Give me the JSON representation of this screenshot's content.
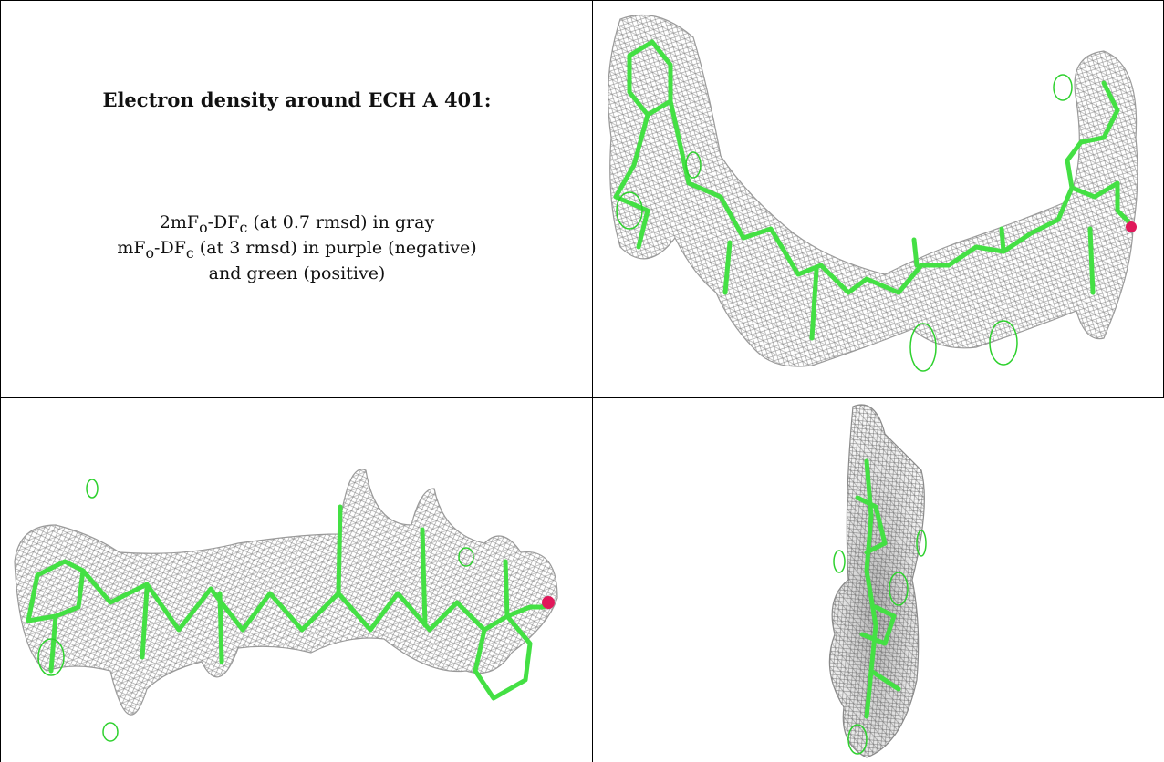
{
  "caption": {
    "title": "Electron density around ECH A 401:",
    "line1_a": "2mF",
    "line1_sub1": "o",
    "line1_b": "-DF",
    "line1_sub2": "c",
    "line1_rest": " (at 0.7 rmsd) in gray",
    "line2_a": "mF",
    "line2_sub1": "o",
    "line2_b": "-DF",
    "line2_sub2": "c",
    "line2_rest": " (at 3 rmsd) in purple (negative)",
    "line3": "and green (positive)"
  },
  "colors": {
    "mesh_gray": "#9a9a9a",
    "molecule_green": "#44e044",
    "positive_green": "#2ed12e",
    "oxygen_red": "#e0185a",
    "border": "#000000"
  },
  "panels": [
    {
      "name": "view-top-right",
      "content": "electron density mesh, curved view"
    },
    {
      "name": "view-bottom-left",
      "content": "electron density mesh, side view"
    },
    {
      "name": "view-bottom-right",
      "content": "electron density mesh, end-on view"
    }
  ]
}
